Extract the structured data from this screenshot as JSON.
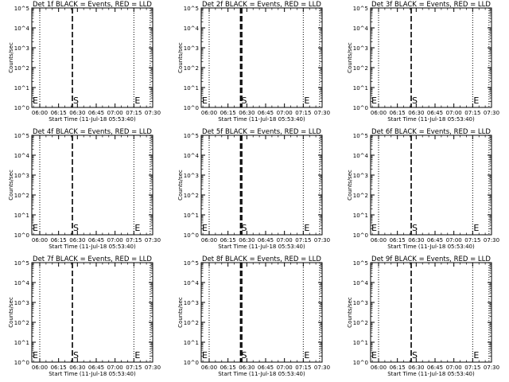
{
  "chart_data": [
    {
      "title": "Det 1f BLACK = Events, RED = LLD",
      "type": "line",
      "xlabel": "Start Time (11-Jul-18 05:53:40)",
      "ylabel": "Counts/sec",
      "xlim": [
        "05:53:40",
        "07:30"
      ],
      "ylim": [
        1,
        100000
      ],
      "yscale": "log",
      "x_ticks": [
        "06:00",
        "06:15",
        "06:30",
        "06:45",
        "07:00",
        "07:15",
        "07:30"
      ],
      "y_ticks": [
        "10^0",
        "10^1",
        "10^2",
        "10^3",
        "10^4",
        "10^5"
      ],
      "dotted_lines": [
        "06:00",
        "07:15",
        "07:28"
      ],
      "dashed_lines": [
        "06:26"
      ],
      "markers": [
        {
          "text": "E",
          "x": "05:53"
        },
        {
          "text": "S",
          "x": "06:26"
        },
        {
          "text": "E",
          "x": "07:15"
        }
      ],
      "series": []
    },
    {
      "title": "Det 2f BLACK = Events, RED = LLD",
      "type": "line",
      "xlabel": "Start Time (11-Jul-18 05:53:40)",
      "ylabel": "Counts/sec",
      "xlim": [
        "05:53:40",
        "07:30"
      ],
      "ylim": [
        1,
        100000
      ],
      "yscale": "log",
      "x_ticks": [
        "06:00",
        "06:15",
        "06:30",
        "06:45",
        "07:00",
        "07:15",
        "07:30"
      ],
      "y_ticks": [
        "10^0",
        "10^1",
        "10^2",
        "10^3",
        "10^4",
        "10^5"
      ],
      "dotted_lines": [
        "06:00",
        "07:15",
        "07:28"
      ],
      "dashed_lines": [
        "06:25",
        "06:26"
      ],
      "markers": [
        {
          "text": "E",
          "x": "05:53"
        },
        {
          "text": "S",
          "x": "06:25"
        },
        {
          "text": "E",
          "x": "07:15"
        }
      ],
      "series": []
    },
    {
      "title": "Det 3f BLACK = Events, RED = LLD",
      "type": "line",
      "xlabel": "Start Time (11-Jul-18 05:53:40)",
      "ylabel": "Counts/sec",
      "xlim": [
        "05:53:40",
        "07:30"
      ],
      "ylim": [
        1,
        100000
      ],
      "yscale": "log",
      "x_ticks": [
        "06:00",
        "06:15",
        "06:30",
        "06:45",
        "07:00",
        "07:15",
        "07:30"
      ],
      "y_ticks": [
        "10^0",
        "10^1",
        "10^2",
        "10^3",
        "10^4",
        "10^5"
      ],
      "dotted_lines": [
        "06:00",
        "07:15",
        "07:28"
      ],
      "dashed_lines": [
        "06:26"
      ],
      "markers": [
        {
          "text": "E",
          "x": "05:53"
        },
        {
          "text": "S",
          "x": "06:26"
        },
        {
          "text": "E",
          "x": "07:15"
        }
      ],
      "series": []
    },
    {
      "title": "Det 4f BLACK = Events, RED = LLD",
      "type": "line",
      "xlabel": "Start Time (11-Jul-18 05:53:40)",
      "ylabel": "Counts/sec",
      "xlim": [
        "05:53:40",
        "07:30"
      ],
      "ylim": [
        1,
        100000
      ],
      "yscale": "log",
      "x_ticks": [
        "06:00",
        "06:15",
        "06:30",
        "06:45",
        "07:00",
        "07:15",
        "07:30"
      ],
      "y_ticks": [
        "10^0",
        "10^1",
        "10^2",
        "10^3",
        "10^4",
        "10^5"
      ],
      "dotted_lines": [
        "06:00",
        "07:15",
        "07:28"
      ],
      "dashed_lines": [
        "06:26"
      ],
      "markers": [
        {
          "text": "E",
          "x": "05:53"
        },
        {
          "text": "S",
          "x": "06:26"
        },
        {
          "text": "E",
          "x": "07:15"
        }
      ],
      "series": []
    },
    {
      "title": "Det 5f BLACK = Events, RED = LLD",
      "type": "line",
      "xlabel": "Start Time (11-Jul-18 05:53:40)",
      "ylabel": "Counts/sec",
      "xlim": [
        "05:53:40",
        "07:30"
      ],
      "ylim": [
        1,
        100000
      ],
      "yscale": "log",
      "x_ticks": [
        "06:00",
        "06:15",
        "06:30",
        "06:45",
        "07:00",
        "07:15",
        "07:30"
      ],
      "y_ticks": [
        "10^0",
        "10^1",
        "10^2",
        "10^3",
        "10^4",
        "10^5"
      ],
      "dotted_lines": [
        "06:00",
        "07:15",
        "07:28"
      ],
      "dashed_lines": [
        "06:25",
        "06:26"
      ],
      "markers": [
        {
          "text": "E",
          "x": "05:53"
        },
        {
          "text": "S",
          "x": "06:25"
        },
        {
          "text": "E",
          "x": "07:15"
        }
      ],
      "series": []
    },
    {
      "title": "Det 6f BLACK = Events, RED = LLD",
      "type": "line",
      "xlabel": "Start Time (11-Jul-18 05:53:40)",
      "ylabel": "Counts/sec",
      "xlim": [
        "05:53:40",
        "07:30"
      ],
      "ylim": [
        1,
        100000
      ],
      "yscale": "log",
      "x_ticks": [
        "06:00",
        "06:15",
        "06:30",
        "06:45",
        "07:00",
        "07:15",
        "07:30"
      ],
      "y_ticks": [
        "10^0",
        "10^1",
        "10^2",
        "10^3",
        "10^4",
        "10^5"
      ],
      "dotted_lines": [
        "06:00",
        "07:15",
        "07:28"
      ],
      "dashed_lines": [
        "06:26"
      ],
      "markers": [
        {
          "text": "E",
          "x": "05:53"
        },
        {
          "text": "S",
          "x": "06:26"
        },
        {
          "text": "E",
          "x": "07:15"
        }
      ],
      "series": []
    },
    {
      "title": "Det 7f BLACK = Events, RED = LLD",
      "type": "line",
      "xlabel": "Start Time (11-Jul-18 05:53:40)",
      "ylabel": "Counts/sec",
      "xlim": [
        "05:53:40",
        "07:30"
      ],
      "ylim": [
        1,
        100000
      ],
      "yscale": "log",
      "x_ticks": [
        "06:00",
        "06:15",
        "06:30",
        "06:45",
        "07:00",
        "07:15",
        "07:30"
      ],
      "y_ticks": [
        "10^0",
        "10^1",
        "10^2",
        "10^3",
        "10^4",
        "10^5"
      ],
      "dotted_lines": [
        "06:00",
        "07:15",
        "07:28"
      ],
      "dashed_lines": [
        "06:26"
      ],
      "markers": [
        {
          "text": "E",
          "x": "05:53"
        },
        {
          "text": "S",
          "x": "06:26"
        },
        {
          "text": "E",
          "x": "07:15"
        }
      ],
      "series": []
    },
    {
      "title": "Det 8f BLACK = Events, RED = LLD",
      "type": "line",
      "xlabel": "Start Time (11-Jul-18 05:53:40)",
      "ylabel": "Counts/sec",
      "xlim": [
        "05:53:40",
        "07:30"
      ],
      "ylim": [
        1,
        100000
      ],
      "yscale": "log",
      "x_ticks": [
        "06:00",
        "06:15",
        "06:30",
        "06:45",
        "07:00",
        "07:15",
        "07:30"
      ],
      "y_ticks": [
        "10^0",
        "10^1",
        "10^2",
        "10^3",
        "10^4",
        "10^5"
      ],
      "dotted_lines": [
        "06:00",
        "07:15",
        "07:28"
      ],
      "dashed_lines": [
        "06:25",
        "06:26"
      ],
      "markers": [
        {
          "text": "E",
          "x": "05:53"
        },
        {
          "text": "S",
          "x": "06:25"
        },
        {
          "text": "E",
          "x": "07:15"
        }
      ],
      "series": []
    },
    {
      "title": "Det 9f BLACK = Events, RED = LLD",
      "type": "line",
      "xlabel": "Start Time (11-Jul-18 05:53:40)",
      "ylabel": "Counts/sec",
      "xlim": [
        "05:53:40",
        "07:30"
      ],
      "ylim": [
        1,
        100000
      ],
      "yscale": "log",
      "x_ticks": [
        "06:00",
        "06:15",
        "06:30",
        "06:45",
        "07:00",
        "07:15",
        "07:30"
      ],
      "y_ticks": [
        "10^0",
        "10^1",
        "10^2",
        "10^3",
        "10^4",
        "10^5"
      ],
      "dotted_lines": [
        "06:00",
        "07:15",
        "07:28"
      ],
      "dashed_lines": [
        "06:26"
      ],
      "markers": [
        {
          "text": "E",
          "x": "05:53"
        },
        {
          "text": "S",
          "x": "06:26"
        },
        {
          "text": "E",
          "x": "07:15"
        }
      ],
      "series": []
    }
  ]
}
